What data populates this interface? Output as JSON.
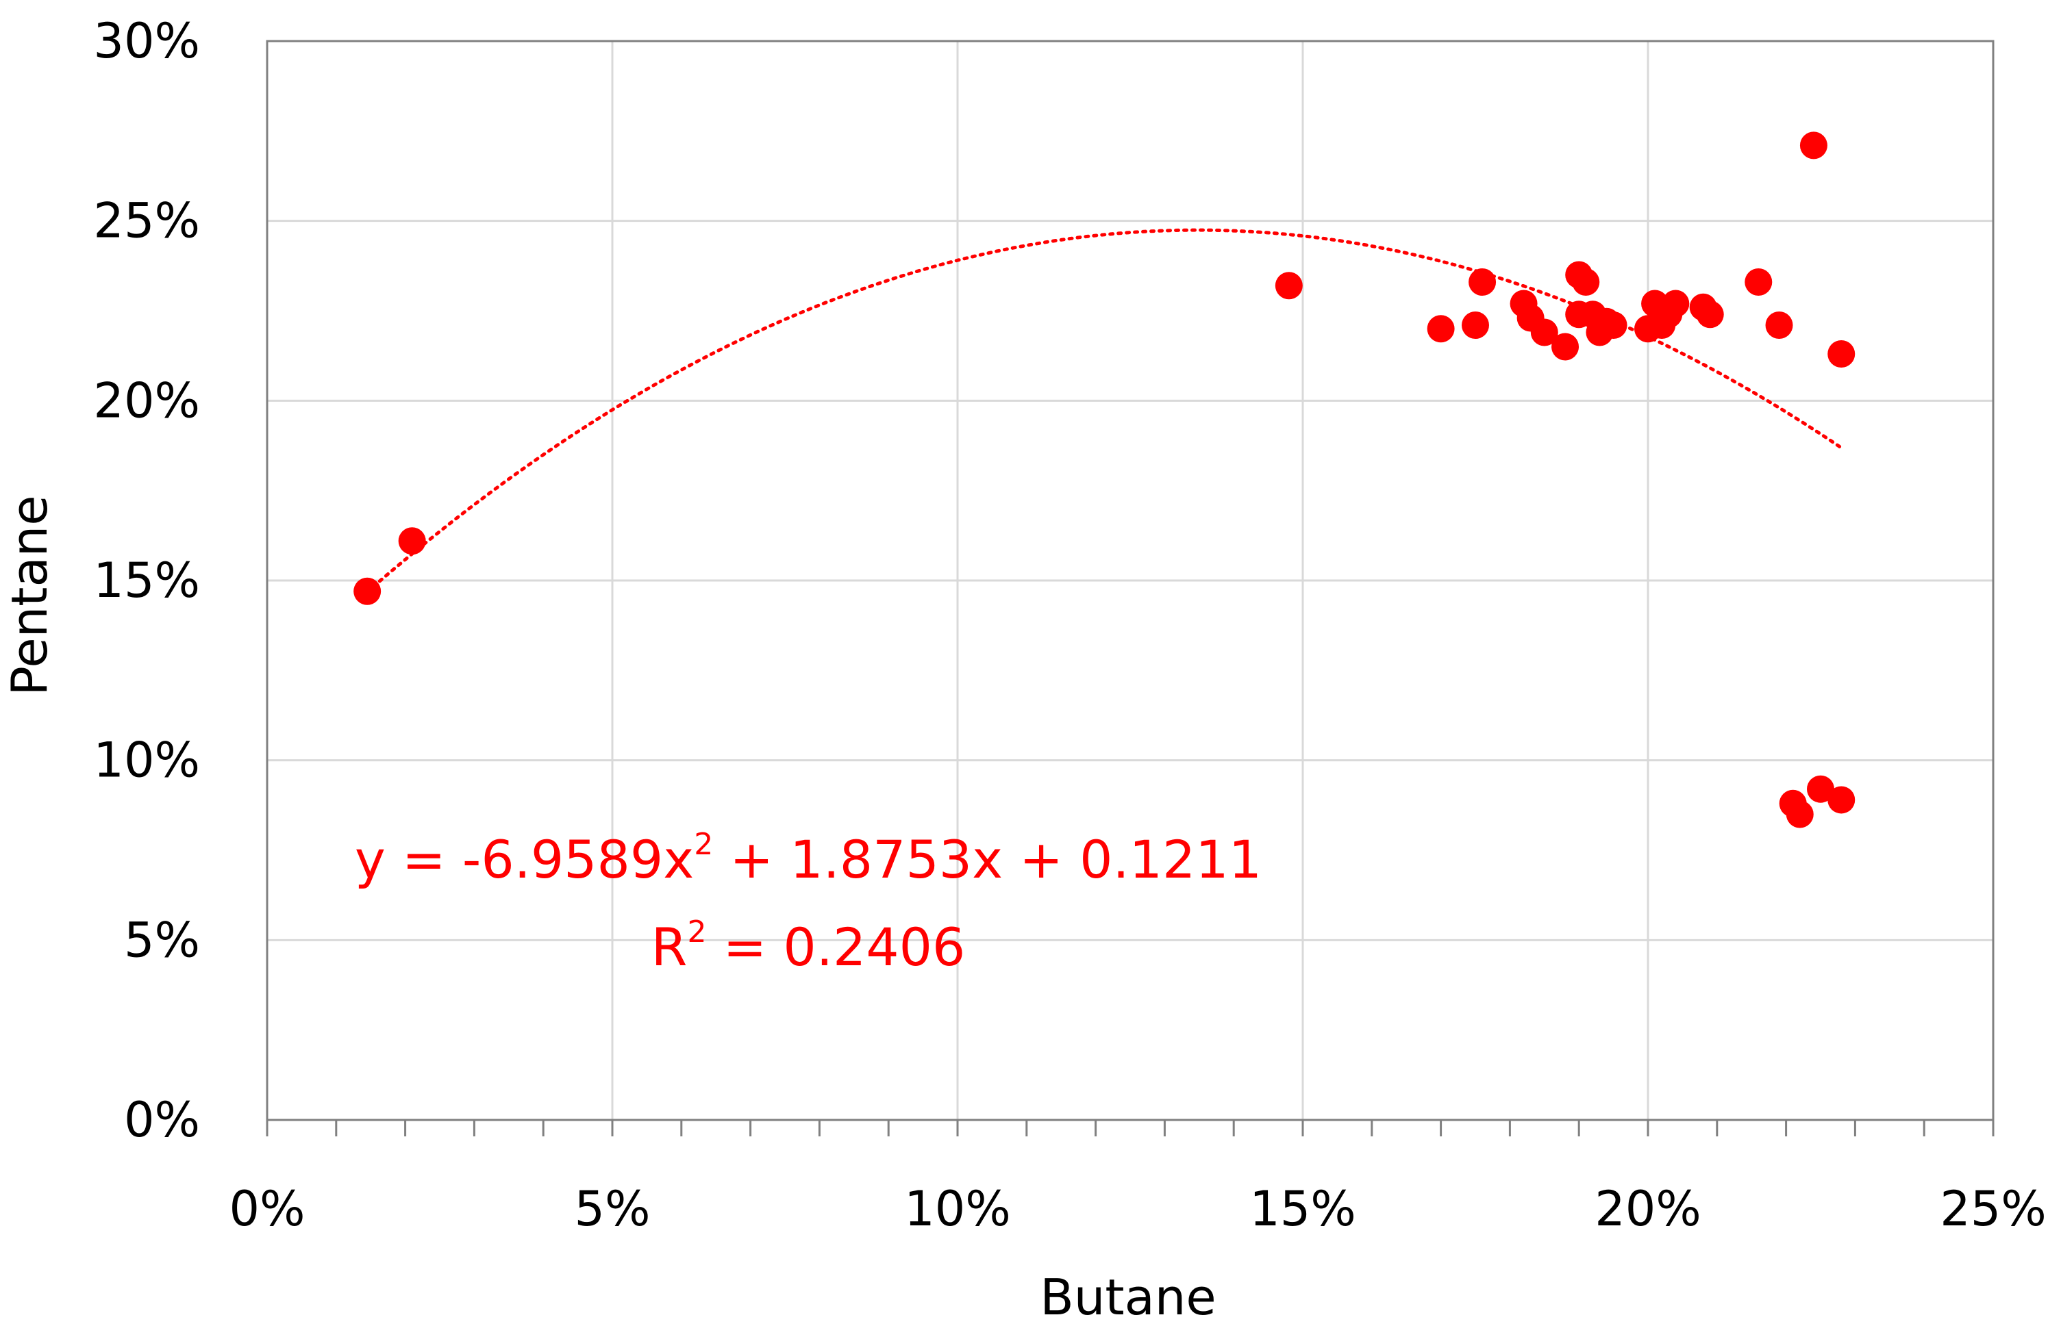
{
  "chart_data": {
    "type": "scatter",
    "xlabel": "Butane",
    "ylabel": "Pentane",
    "xlim": [
      0,
      0.25
    ],
    "ylim": [
      0,
      0.3
    ],
    "x_ticks": [
      0,
      0.05,
      0.1,
      0.15,
      0.2,
      0.25
    ],
    "x_tick_labels": [
      "0%",
      "5%",
      "10%",
      "15%",
      "20%",
      "25%"
    ],
    "x_minor_step": 0.01,
    "y_ticks": [
      0,
      0.05,
      0.1,
      0.15,
      0.2,
      0.25,
      0.3
    ],
    "y_tick_labels": [
      "0%",
      "5%",
      "10%",
      "15%",
      "20%",
      "25%",
      "30%"
    ],
    "grid": true,
    "marker_color": "#ff0000",
    "series": [
      {
        "points": [
          [
            0.0145,
            0.147
          ],
          [
            0.021,
            0.161
          ],
          [
            0.148,
            0.232
          ],
          [
            0.17,
            0.22
          ],
          [
            0.175,
            0.221
          ],
          [
            0.176,
            0.233
          ],
          [
            0.182,
            0.227
          ],
          [
            0.183,
            0.223
          ],
          [
            0.185,
            0.219
          ],
          [
            0.188,
            0.215
          ],
          [
            0.19,
            0.235
          ],
          [
            0.191,
            0.233
          ],
          [
            0.19,
            0.224
          ],
          [
            0.192,
            0.224
          ],
          [
            0.193,
            0.219
          ],
          [
            0.194,
            0.222
          ],
          [
            0.195,
            0.221
          ],
          [
            0.2,
            0.22
          ],
          [
            0.201,
            0.227
          ],
          [
            0.202,
            0.221
          ],
          [
            0.203,
            0.224
          ],
          [
            0.204,
            0.227
          ],
          [
            0.208,
            0.226
          ],
          [
            0.209,
            0.224
          ],
          [
            0.216,
            0.233
          ],
          [
            0.219,
            0.221
          ],
          [
            0.224,
            0.271
          ],
          [
            0.228,
            0.213
          ],
          [
            0.221,
            0.088
          ],
          [
            0.222,
            0.085
          ],
          [
            0.225,
            0.092
          ],
          [
            0.228,
            0.089
          ]
        ]
      }
    ],
    "trendline": {
      "type": "polynomial",
      "coefficients": [
        -6.9589,
        1.8753,
        0.1211
      ],
      "x_range": [
        0.0145,
        0.228
      ],
      "style": "dotted",
      "color": "#ff0000",
      "equation_parts": {
        "prefix": "y = -6.9589x",
        "sup": "2",
        "suffix": " + 1.8753x + 0.1211"
      },
      "r_squared_parts": {
        "prefix": "R",
        "sup": "2",
        "suffix": " = 0.2406"
      }
    }
  }
}
